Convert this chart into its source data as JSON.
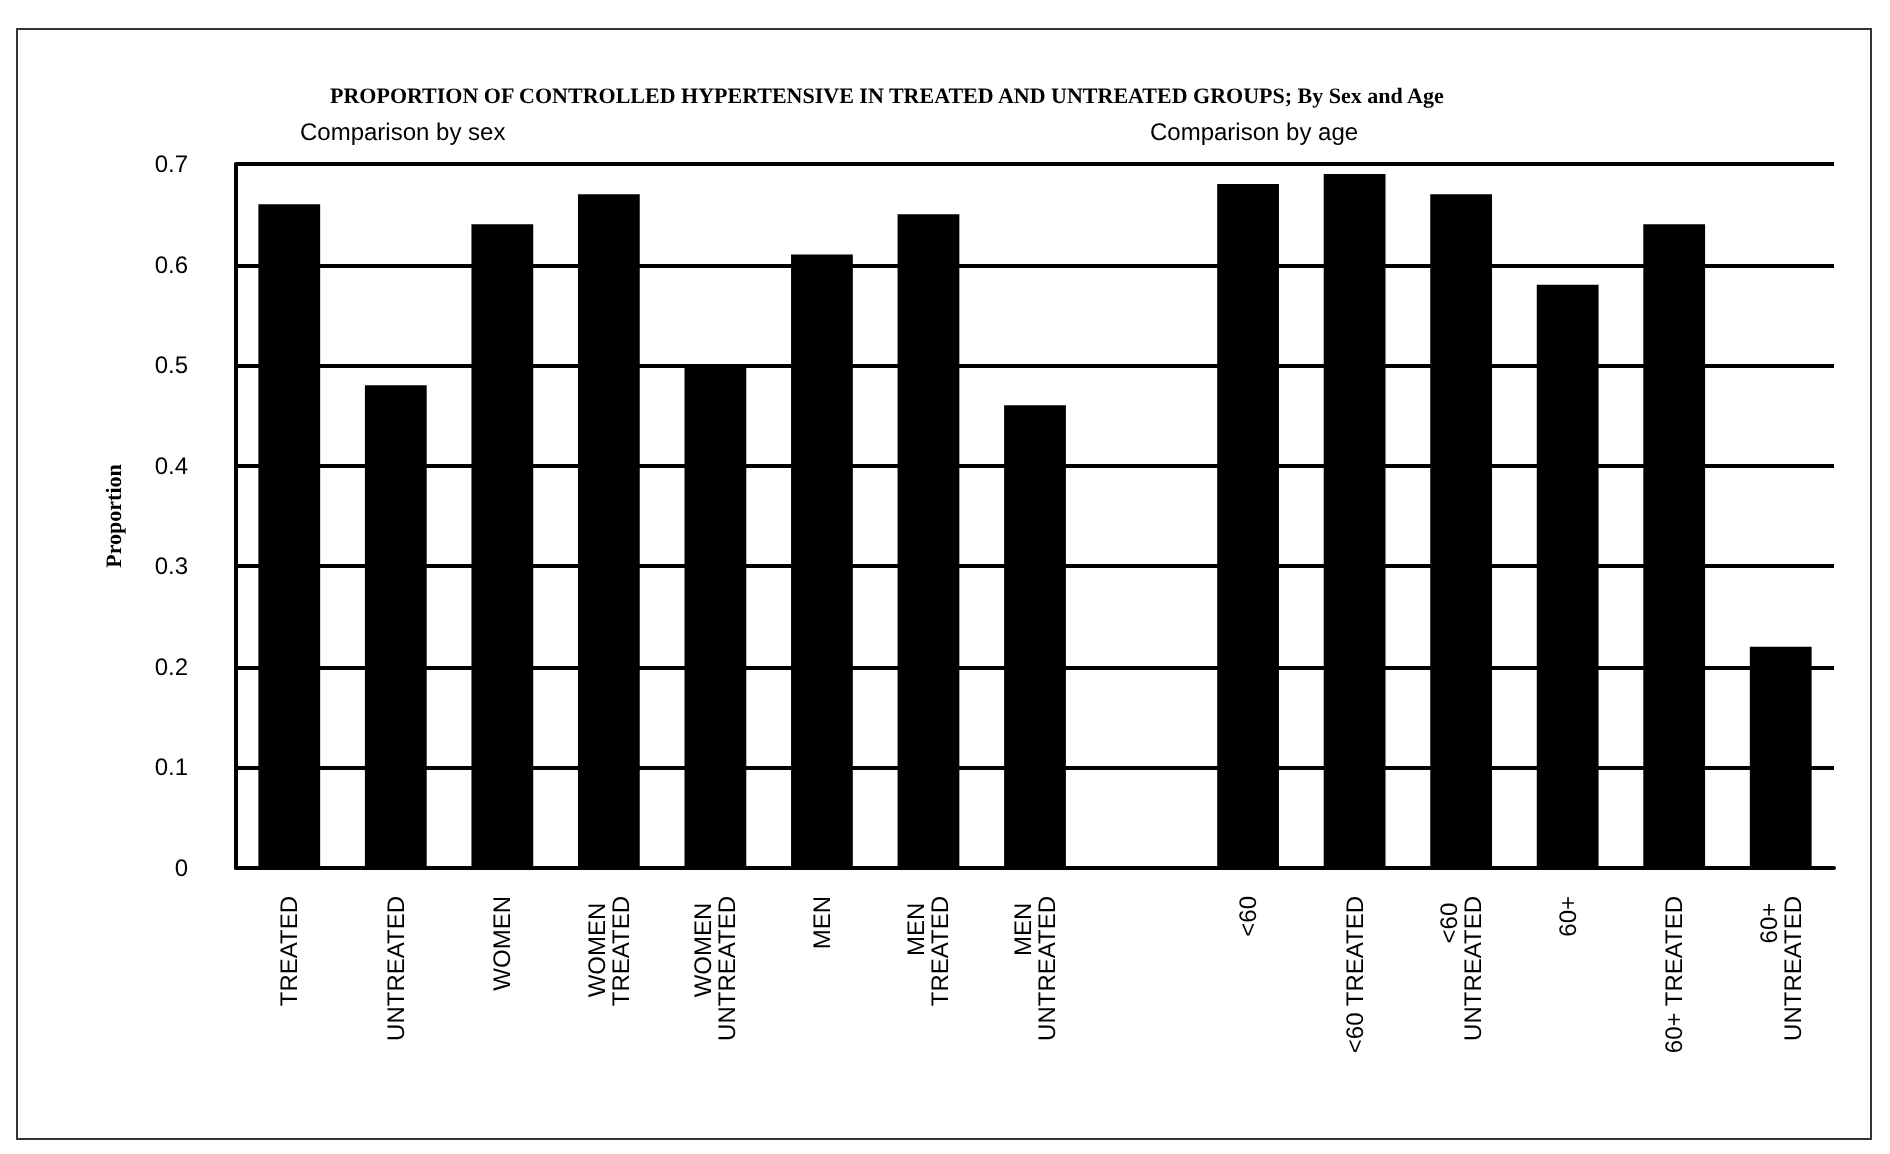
{
  "chart_data": {
    "type": "bar",
    "title": "PROPORTION OF CONTROLLED HYPERTENSIVE IN TREATED AND UNTREATED GROUPS; By Sex and Age",
    "ylabel": "Proportion",
    "annotations": [
      "Comparison by sex",
      "Comparison by age"
    ],
    "categories": [
      "TREATED",
      "UNTREATED",
      "WOMEN",
      "WOMEN TREATED",
      "WOMEN UNTREATED",
      "MEN",
      "MEN TREATED",
      "MEN UNTREATED",
      null,
      "<60",
      "<60 TREATED",
      "<60 UNTREATED",
      "60+",
      "60+ TREATED",
      "60+ UNTREATED"
    ],
    "values": [
      0.66,
      0.48,
      0.64,
      0.67,
      0.5,
      0.61,
      0.65,
      0.46,
      null,
      0.68,
      0.69,
      0.67,
      0.58,
      0.64,
      0.22
    ],
    "color": "#000000",
    "ylim": [
      0,
      0.7
    ],
    "yticks": [
      0,
      0.1,
      0.2,
      0.3,
      0.4,
      0.5,
      0.6,
      0.7
    ],
    "grid": "y"
  }
}
